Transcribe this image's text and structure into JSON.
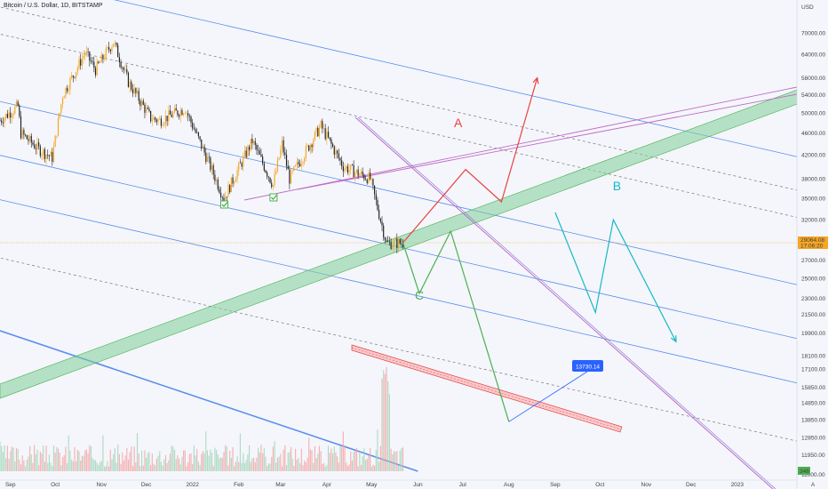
{
  "title": "Bitcoin / U.S. Dollar, 1D, BITSTAMP",
  "chart_data": {
    "type": "candlestick",
    "symbol": "Bitcoin / U.S. Dollar",
    "interval": "1D",
    "exchange": "BITSTAMP",
    "currency_label": "USD",
    "y_scale": "log",
    "ylim": [
      10750,
      78000
    ],
    "x_range": [
      "2021-08-25",
      "2023-02-10"
    ],
    "x_ticks": [
      "Sep",
      "Oct",
      "Nov",
      "Dec",
      "2022",
      "Feb",
      "Mar",
      "Apr",
      "May",
      "Jun",
      "Jul",
      "Aug",
      "Sep",
      "Oct",
      "Nov",
      "Dec",
      "2023"
    ],
    "x_tick_dates": [
      "2021-09-01",
      "2021-10-01",
      "2021-11-01",
      "2021-12-01",
      "2022-01-01",
      "2022-02-01",
      "2022-03-01",
      "2022-04-01",
      "2022-05-01",
      "2022-06-01",
      "2022-07-01",
      "2022-08-01",
      "2022-09-01",
      "2022-10-01",
      "2022-11-01",
      "2022-12-01",
      "2023-01-01"
    ],
    "y_ticks": [
      70000,
      64000,
      58000,
      54000,
      50000,
      46000,
      42000,
      38000,
      35000,
      32000,
      29064.08,
      27000,
      25000,
      23000,
      21500,
      19900,
      18100,
      17100,
      15850,
      14850,
      13850,
      12850,
      11950,
      11000
    ],
    "y_tick_labels": [
      "70000.00",
      "64000.00",
      "58000.00",
      "54000.00",
      "50000.00",
      "46000.00",
      "42000.00",
      "38000.00",
      "35000.00",
      "32000.00",
      "29064.08",
      "27000.00",
      "25000.00",
      "23000.00",
      "21500.00",
      "19900.00",
      "18100.00",
      "17100.00",
      "15850.00",
      "14850.00",
      "13850.00",
      "12850.00",
      "11950.00",
      "11000.00"
    ],
    "last_price": 29064.08,
    "last_price_label": "29064.08",
    "countdown": "17:06:20",
    "volume_label": "346",
    "price_path": [
      [
        "2021-08-25",
        48500
      ],
      [
        "2021-09-06",
        51500
      ],
      [
        "2021-09-08",
        46000
      ],
      [
        "2021-09-20",
        43000
      ],
      [
        "2021-09-29",
        41500
      ],
      [
        "2021-10-06",
        54000
      ],
      [
        "2021-10-15",
        60000
      ],
      [
        "2021-10-21",
        64500
      ],
      [
        "2021-10-28",
        60000
      ],
      [
        "2021-11-09",
        67500
      ],
      [
        "2021-11-19",
        57000
      ],
      [
        "2021-12-04",
        49000
      ],
      [
        "2021-12-10",
        48500
      ],
      [
        "2021-12-27",
        51000
      ],
      [
        "2022-01-10",
        41800
      ],
      [
        "2022-01-22",
        35000
      ],
      [
        "2022-02-10",
        44500
      ],
      [
        "2022-02-24",
        37000
      ],
      [
        "2022-03-02",
        44000
      ],
      [
        "2022-03-07",
        38000
      ],
      [
        "2022-03-28",
        47400
      ],
      [
        "2022-04-12",
        40000
      ],
      [
        "2022-04-30",
        38000
      ],
      [
        "2022-05-11",
        29000
      ],
      [
        "2022-05-18",
        29000
      ],
      [
        "2022-05-22",
        29064
      ]
    ],
    "projection_A": [
      [
        "2022-05-22",
        29064
      ],
      [
        "2022-07-03",
        39500
      ],
      [
        "2022-07-27",
        34500
      ],
      [
        "2022-08-20",
        58000
      ]
    ],
    "projection_B": [
      [
        "2022-09-01",
        33000
      ],
      [
        "2022-09-28",
        21700
      ],
      [
        "2022-10-10",
        32000
      ],
      [
        "2022-11-21",
        19200
      ]
    ],
    "projection_C": [
      [
        "2022-05-22",
        29064
      ],
      [
        "2022-06-02",
        23500
      ],
      [
        "2022-06-23",
        30500
      ],
      [
        "2022-08-01",
        13730.14
      ]
    ],
    "target_label": "13730.14",
    "annotations": [
      "A",
      "B",
      "C"
    ],
    "colors": {
      "background": "#f4f6fb",
      "candle_up": "#f5a623",
      "candle_down": "#222222",
      "channel": "#5b8def",
      "wedge": "#c06bc4",
      "support_band": "#7fcf99",
      "path_A": "#e8433f",
      "path_B": "#14b8c6",
      "path_C": "#4caf50",
      "target_label_bg": "#2962ff",
      "last_price_line": "#f5a623"
    }
  }
}
